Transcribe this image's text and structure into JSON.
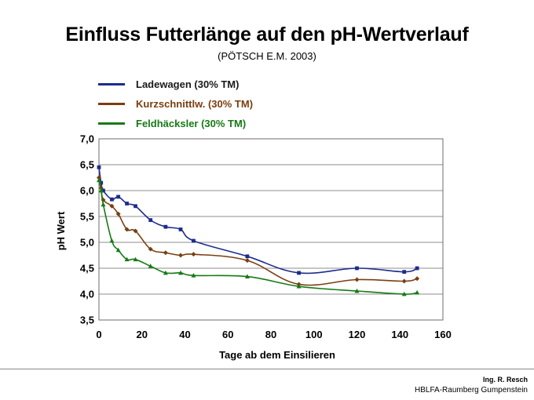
{
  "header": {
    "title": "Einfluss Futterlänge auf den pH-Wertverlauf",
    "subtitle": "(PÖTSCH  E.M. 2003)"
  },
  "footer": {
    "author": "Ing. R. Resch",
    "institution": "HBLFA-Raumberg Gumpenstein"
  },
  "chart_data": {
    "type": "line",
    "xlabel": "Tage ab dem Einsilieren",
    "ylabel": "pH Wert",
    "xlim": [
      0,
      160
    ],
    "ylim": [
      3.5,
      7.0
    ],
    "xticks": [
      "0",
      "20",
      "40",
      "60",
      "80",
      "100",
      "120",
      "140",
      "160"
    ],
    "yticks": [
      "3,5",
      "4,0",
      "4,5",
      "5,0",
      "5,5",
      "6,0",
      "6,5",
      "7,0"
    ],
    "legend_position": "top-left",
    "series": [
      {
        "name": "Ladewagen (30% TM)",
        "color": "#1c2c8c",
        "marker": "square",
        "points": [
          [
            0,
            6.45
          ],
          [
            1,
            6.15
          ],
          [
            2,
            6.0
          ],
          [
            6,
            5.83
          ],
          [
            9,
            5.88
          ],
          [
            13,
            5.75
          ],
          [
            17,
            5.7
          ],
          [
            24,
            5.43
          ],
          [
            31,
            5.3
          ],
          [
            38,
            5.25
          ],
          [
            44,
            5.03
          ],
          [
            69,
            4.73
          ],
          [
            93,
            4.41
          ],
          [
            120,
            4.5
          ],
          [
            142,
            4.43
          ],
          [
            148,
            4.5
          ]
        ]
      },
      {
        "name": "Kurzschnittlw.  (30% TM)",
        "color": "#7a3e10",
        "marker": "diamond",
        "points": [
          [
            0,
            6.25
          ],
          [
            1,
            6.05
          ],
          [
            2,
            5.82
          ],
          [
            6,
            5.7
          ],
          [
            9,
            5.55
          ],
          [
            13,
            5.25
          ],
          [
            17,
            5.22
          ],
          [
            24,
            4.87
          ],
          [
            31,
            4.8
          ],
          [
            38,
            4.75
          ],
          [
            44,
            4.77
          ],
          [
            69,
            4.65
          ],
          [
            93,
            4.19
          ],
          [
            120,
            4.28
          ],
          [
            142,
            4.25
          ],
          [
            148,
            4.3
          ]
        ]
      },
      {
        "name": "Feldhäcksler (30% TM)",
        "color": "#167a16",
        "marker": "triangle",
        "points": [
          [
            0,
            6.2
          ],
          [
            1,
            6.0
          ],
          [
            2,
            5.73
          ],
          [
            6,
            5.03
          ],
          [
            9,
            4.85
          ],
          [
            13,
            4.67
          ],
          [
            17,
            4.67
          ],
          [
            24,
            4.54
          ],
          [
            31,
            4.41
          ],
          [
            38,
            4.41
          ],
          [
            44,
            4.36
          ],
          [
            69,
            4.34
          ],
          [
            93,
            4.15
          ],
          [
            120,
            4.06
          ],
          [
            142,
            4.0
          ],
          [
            148,
            4.03
          ]
        ]
      }
    ]
  }
}
